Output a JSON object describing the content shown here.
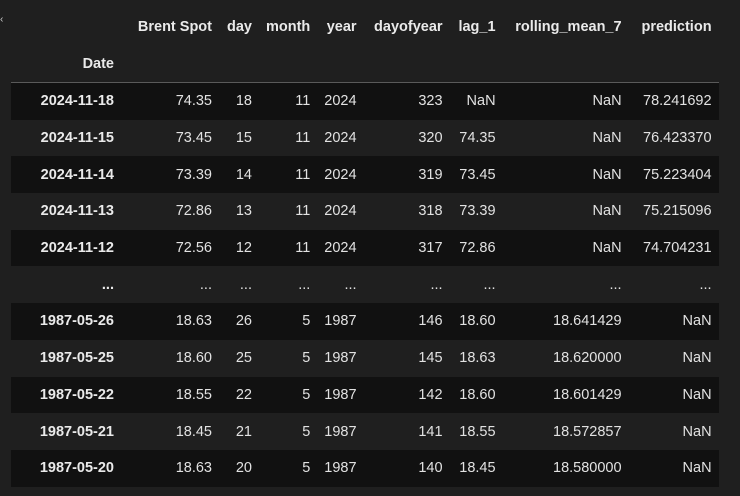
{
  "table": {
    "columns": [
      "Brent Spot",
      "day",
      "month",
      "year",
      "dayofyear",
      "lag_1",
      "rolling_mean_7",
      "prediction"
    ],
    "index_name": "Date",
    "rows": [
      {
        "index": "2024-11-18",
        "cells": [
          "74.35",
          "18",
          "11",
          "2024",
          "323",
          "NaN",
          "NaN",
          "78.241692"
        ]
      },
      {
        "index": "2024-11-15",
        "cells": [
          "73.45",
          "15",
          "11",
          "2024",
          "320",
          "74.35",
          "NaN",
          "76.423370"
        ]
      },
      {
        "index": "2024-11-14",
        "cells": [
          "73.39",
          "14",
          "11",
          "2024",
          "319",
          "73.45",
          "NaN",
          "75.223404"
        ]
      },
      {
        "index": "2024-11-13",
        "cells": [
          "72.86",
          "13",
          "11",
          "2024",
          "318",
          "73.39",
          "NaN",
          "75.215096"
        ]
      },
      {
        "index": "2024-11-12",
        "cells": [
          "72.56",
          "12",
          "11",
          "2024",
          "317",
          "72.86",
          "NaN",
          "74.704231"
        ]
      },
      {
        "index": "...",
        "cells": [
          "...",
          "...",
          "...",
          "...",
          "...",
          "...",
          "...",
          "..."
        ]
      },
      {
        "index": "1987-05-26",
        "cells": [
          "18.63",
          "26",
          "5",
          "1987",
          "146",
          "18.60",
          "18.641429",
          "NaN"
        ]
      },
      {
        "index": "1987-05-25",
        "cells": [
          "18.60",
          "25",
          "5",
          "1987",
          "145",
          "18.63",
          "18.620000",
          "NaN"
        ]
      },
      {
        "index": "1987-05-22",
        "cells": [
          "18.55",
          "22",
          "5",
          "1987",
          "142",
          "18.60",
          "18.601429",
          "NaN"
        ]
      },
      {
        "index": "1987-05-21",
        "cells": [
          "18.45",
          "21",
          "5",
          "1987",
          "141",
          "18.55",
          "18.572857",
          "NaN"
        ]
      },
      {
        "index": "1987-05-20",
        "cells": [
          "18.63",
          "20",
          "5",
          "1987",
          "140",
          "18.45",
          "18.580000",
          "NaN"
        ]
      }
    ]
  }
}
